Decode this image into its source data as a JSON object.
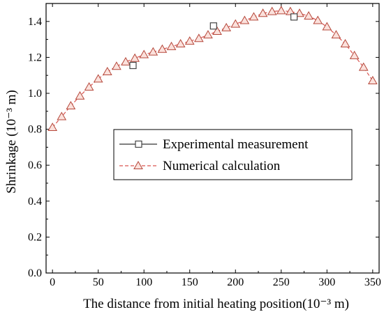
{
  "chart_data": {
    "type": "line",
    "title": "",
    "xlabel": "The distance from initial heating position(10⁻³ m)",
    "ylabel": "Shrinkage (10⁻³ m)",
    "xlim": [
      -7,
      357
    ],
    "ylim": [
      0.0,
      1.5
    ],
    "x_ticks": [
      0,
      50,
      100,
      150,
      200,
      250,
      300,
      350
    ],
    "x_tick_labels": [
      "0",
      "50",
      "100",
      "150",
      "200",
      "250",
      "300",
      "350"
    ],
    "y_ticks": [
      0.0,
      0.2,
      0.4,
      0.6,
      0.8,
      1.0,
      1.2,
      1.4
    ],
    "y_tick_labels": [
      "0.0",
      "0.2",
      "0.4",
      "0.6",
      "0.8",
      "1.0",
      "1.2",
      "1.4"
    ],
    "grid": false,
    "legend_position": "center",
    "series": [
      {
        "name": "Experimental measurement",
        "marker": "square",
        "color": "#333333",
        "points": [
          {
            "x": 88,
            "y": 1.155
          },
          {
            "x": 176,
            "y": 1.375
          },
          {
            "x": 264,
            "y": 1.425
          }
        ]
      },
      {
        "name": "Numerical calculation",
        "marker": "triangle",
        "color": "#d9534f",
        "points": [
          {
            "x": 0,
            "y": 0.81
          },
          {
            "x": 10,
            "y": 0.87
          },
          {
            "x": 20,
            "y": 0.93
          },
          {
            "x": 30,
            "y": 0.985
          },
          {
            "x": 40,
            "y": 1.035
          },
          {
            "x": 50,
            "y": 1.08
          },
          {
            "x": 60,
            "y": 1.12
          },
          {
            "x": 70,
            "y": 1.15
          },
          {
            "x": 80,
            "y": 1.175
          },
          {
            "x": 90,
            "y": 1.195
          },
          {
            "x": 100,
            "y": 1.215
          },
          {
            "x": 110,
            "y": 1.23
          },
          {
            "x": 120,
            "y": 1.245
          },
          {
            "x": 130,
            "y": 1.26
          },
          {
            "x": 140,
            "y": 1.275
          },
          {
            "x": 150,
            "y": 1.29
          },
          {
            "x": 160,
            "y": 1.305
          },
          {
            "x": 170,
            "y": 1.325
          },
          {
            "x": 180,
            "y": 1.345
          },
          {
            "x": 190,
            "y": 1.365
          },
          {
            "x": 200,
            "y": 1.385
          },
          {
            "x": 210,
            "y": 1.405
          },
          {
            "x": 220,
            "y": 1.425
          },
          {
            "x": 230,
            "y": 1.445
          },
          {
            "x": 240,
            "y": 1.455
          },
          {
            "x": 250,
            "y": 1.46
          },
          {
            "x": 260,
            "y": 1.455
          },
          {
            "x": 270,
            "y": 1.445
          },
          {
            "x": 280,
            "y": 1.43
          },
          {
            "x": 290,
            "y": 1.405
          },
          {
            "x": 300,
            "y": 1.37
          },
          {
            "x": 310,
            "y": 1.325
          },
          {
            "x": 320,
            "y": 1.275
          },
          {
            "x": 330,
            "y": 1.21
          },
          {
            "x": 340,
            "y": 1.145
          },
          {
            "x": 350,
            "y": 1.07
          }
        ]
      }
    ]
  }
}
